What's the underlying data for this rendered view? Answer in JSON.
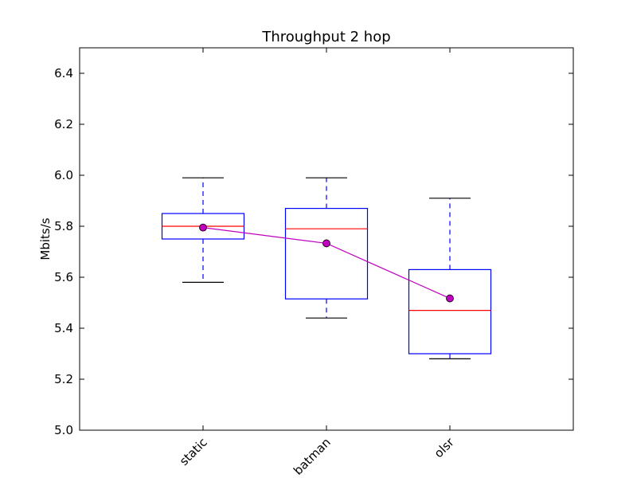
{
  "chart_data": {
    "type": "box",
    "title": "Throughput 2 hop",
    "xlabel": "",
    "ylabel": "Mbits/s",
    "categories": [
      "static",
      "batman",
      "olsr"
    ],
    "ylim": [
      5.0,
      6.5
    ],
    "yticks": [
      "5.0",
      "5.2",
      "5.4",
      "5.6",
      "5.8",
      "6.0",
      "6.2",
      "6.4"
    ],
    "boxes": [
      {
        "whisker_low": 5.58,
        "q1": 5.75,
        "median": 5.8,
        "q3": 5.85,
        "whisker_high": 5.99
      },
      {
        "whisker_low": 5.44,
        "q1": 5.515,
        "median": 5.79,
        "q3": 5.87,
        "whisker_high": 5.99
      },
      {
        "whisker_low": 5.28,
        "q1": 5.3,
        "median": 5.47,
        "q3": 5.63,
        "whisker_high": 5.91
      }
    ],
    "mean_series": {
      "values": [
        5.795,
        5.733,
        5.517
      ]
    },
    "grid": false,
    "colors": {
      "box": "#0000ff",
      "median": "#ff0000",
      "whisker_cap": "#000000",
      "mean_line": "#bf00bf",
      "mean_marker": "#bf00bf"
    }
  }
}
